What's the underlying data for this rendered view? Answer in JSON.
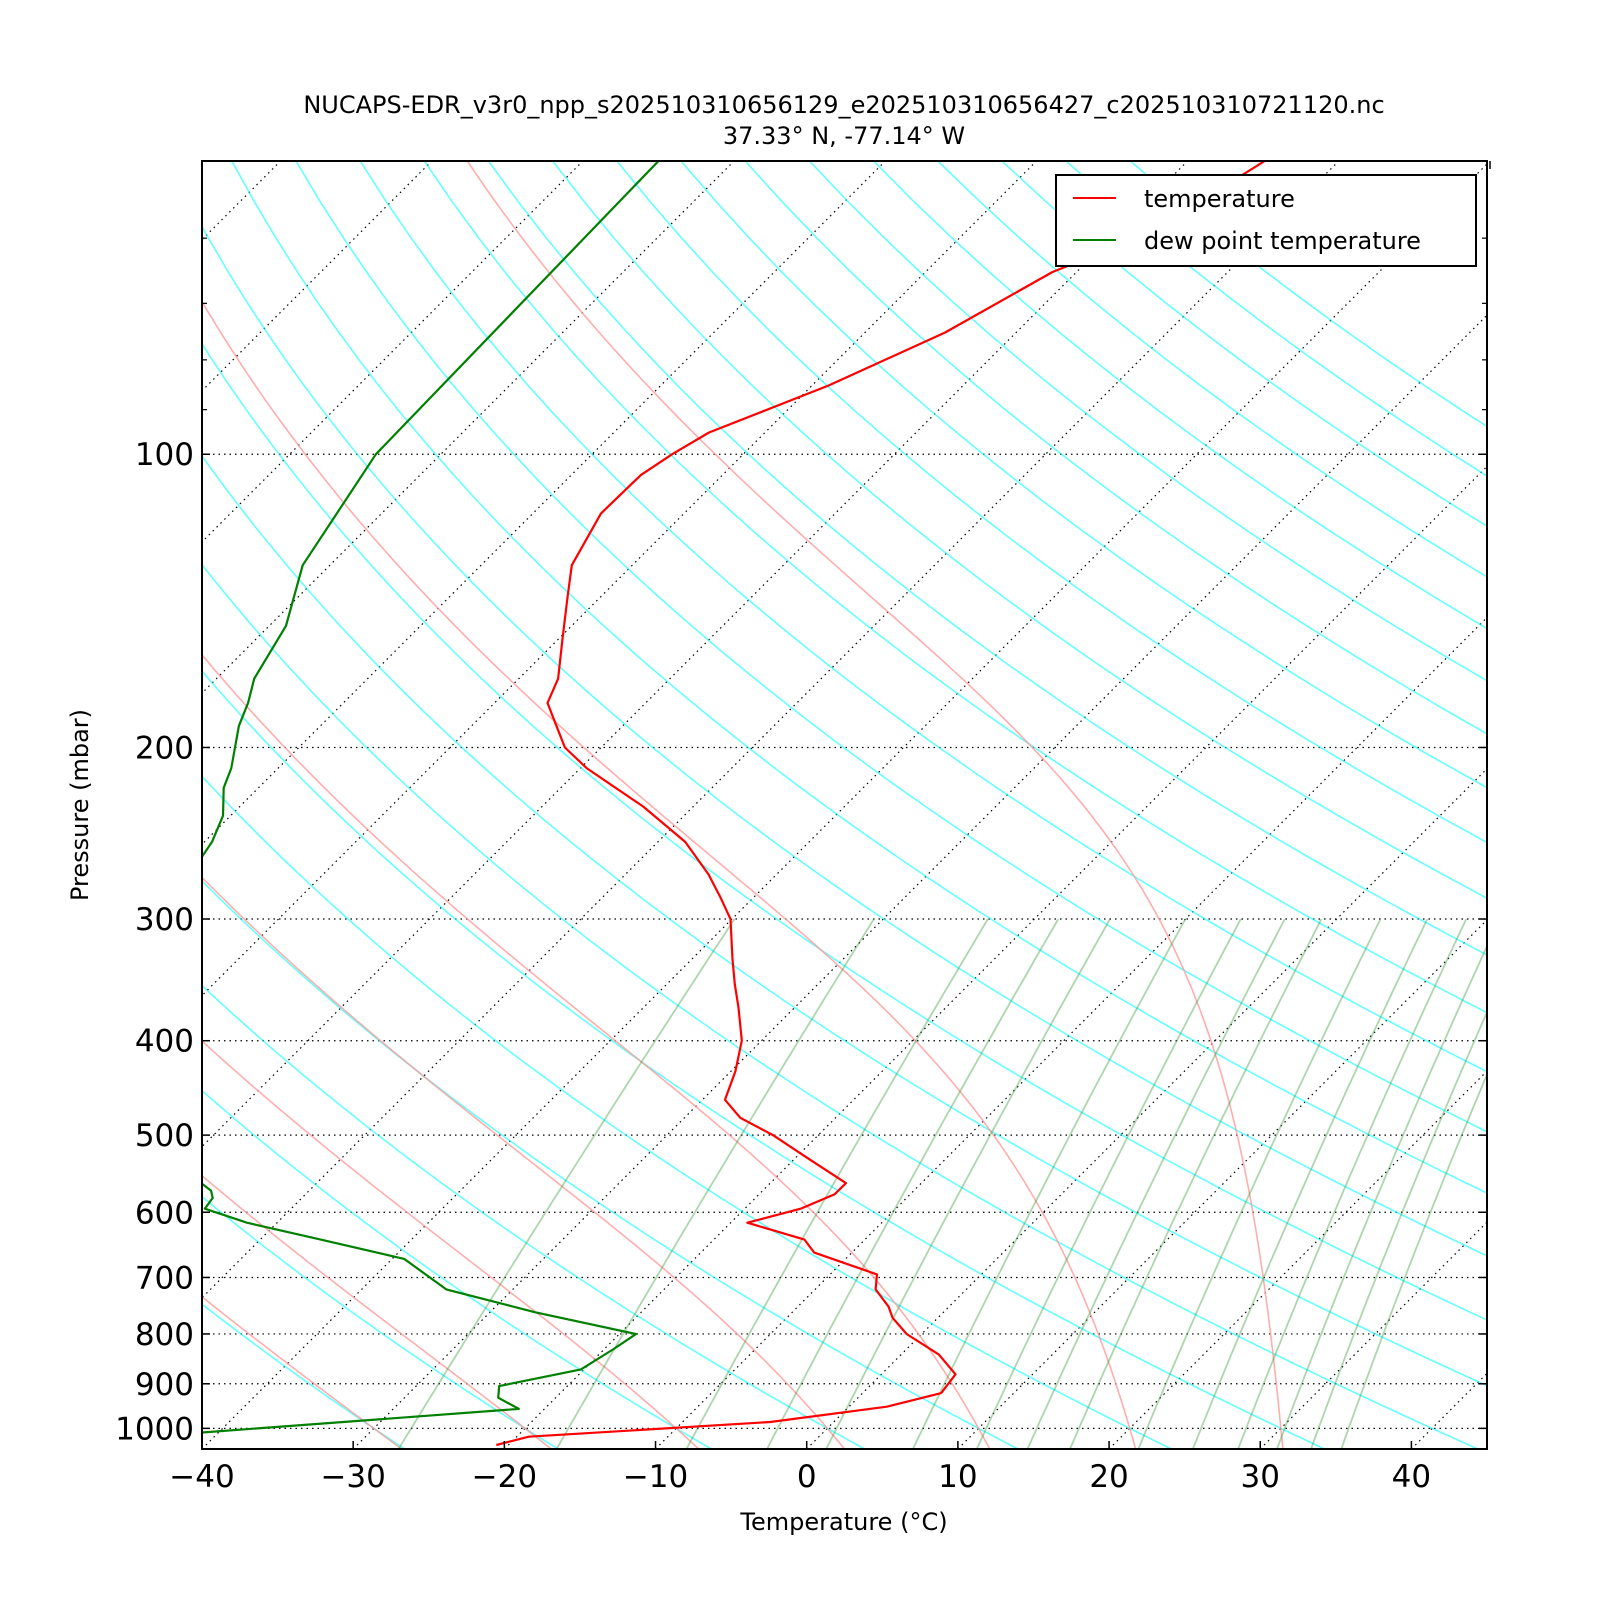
{
  "chart_data": {
    "type": "line",
    "title_line1": "NUCAPS-EDR_v3r0_npp_s202510310656129_e202510310656427_c202510310721120.nc",
    "title_line2": "37.33° N, -77.14° W",
    "xlabel": "Temperature (°C)",
    "ylabel": "Pressure (mbar)",
    "xlim": [
      -40,
      45
    ],
    "ylim": [
      1050,
      50
    ],
    "y_scale": "log",
    "x_ticks": [
      -40,
      -30,
      -20,
      -10,
      0,
      10,
      20,
      30,
      40
    ],
    "x_tick_labels": [
      "−40",
      "−30",
      "−20",
      "−10",
      "0",
      "10",
      "20",
      "30",
      "40"
    ],
    "y_ticks": [
      100,
      200,
      300,
      400,
      500,
      600,
      700,
      800,
      900,
      1000
    ],
    "y_tick_labels": [
      "100",
      "200",
      "300",
      "400",
      "500",
      "600",
      "700",
      "800",
      "900",
      "1000"
    ],
    "grid": true,
    "legend_position": "top-right",
    "series": [
      {
        "name": "temperature",
        "color": "#ff0000",
        "points": [
          [
            50,
            -54.9
          ],
          [
            55,
            -56.5
          ],
          [
            60,
            -58.2
          ],
          [
            65,
            -61.6
          ],
          [
            75,
            -64.7
          ],
          [
            85,
            -68.9
          ],
          [
            95,
            -73.7
          ],
          [
            100,
            -74.7
          ],
          [
            105,
            -75.4
          ],
          [
            115,
            -75.5
          ],
          [
            130,
            -74.0
          ],
          [
            140,
            -72.2
          ],
          [
            155,
            -69.7
          ],
          [
            170,
            -67.4
          ],
          [
            180,
            -66.5
          ],
          [
            190,
            -64.4
          ],
          [
            200,
            -62.4
          ],
          [
            210,
            -59.6
          ],
          [
            230,
            -53.3
          ],
          [
            250,
            -48.2
          ],
          [
            270,
            -44.5
          ],
          [
            285,
            -42.2
          ],
          [
            300,
            -40.1
          ],
          [
            330,
            -37.3
          ],
          [
            350,
            -35.5
          ],
          [
            370,
            -33.7
          ],
          [
            400,
            -31.3
          ],
          [
            430,
            -29.7
          ],
          [
            460,
            -28.5
          ],
          [
            480,
            -26.3
          ],
          [
            500,
            -23.0
          ],
          [
            530,
            -18.9
          ],
          [
            560,
            -15.0
          ],
          [
            575,
            -15.0
          ],
          [
            595,
            -16.3
          ],
          [
            615,
            -18.9
          ],
          [
            640,
            -14.0
          ],
          [
            660,
            -12.5
          ],
          [
            695,
            -6.9
          ],
          [
            720,
            -6.0
          ],
          [
            750,
            -4.0
          ],
          [
            770,
            -3.0
          ],
          [
            800,
            -1.0
          ],
          [
            840,
            2.5
          ],
          [
            880,
            4.9
          ],
          [
            920,
            5.2
          ],
          [
            950,
            2.5
          ],
          [
            985,
            -4.2
          ],
          [
            1020,
            -19.2
          ],
          [
            1040,
            -20.8
          ]
        ]
      },
      {
        "name": "dew point temperature",
        "color": "#008000",
        "points": [
          [
            50,
            -95.0
          ],
          [
            100,
            -94.3
          ],
          [
            130,
            -91.8
          ],
          [
            150,
            -88.9
          ],
          [
            170,
            -87.5
          ],
          [
            180,
            -86.3
          ],
          [
            190,
            -85.4
          ],
          [
            210,
            -83.1
          ],
          [
            220,
            -82.3
          ],
          [
            235,
            -80.5
          ],
          [
            250,
            -79.5
          ],
          [
            270,
            -78.8
          ],
          [
            290,
            -77.6
          ],
          [
            300,
            -76.7
          ],
          [
            330,
            -75.4
          ],
          [
            350,
            -74.3
          ],
          [
            370,
            -73.6
          ],
          [
            390,
            -73.1
          ],
          [
            400,
            -72.6
          ],
          [
            430,
            -70.0
          ],
          [
            460,
            -67.6
          ],
          [
            480,
            -66.5
          ],
          [
            500,
            -65.2
          ],
          [
            520,
            -62.5
          ],
          [
            540,
            -60.0
          ],
          [
            570,
            -56.5
          ],
          [
            580,
            -55.9
          ],
          [
            595,
            -55.7
          ],
          [
            615,
            -52.0
          ],
          [
            640,
            -46.0
          ],
          [
            670,
            -39.2
          ],
          [
            720,
            -34.4
          ],
          [
            760,
            -27.0
          ],
          [
            800,
            -18.9
          ],
          [
            830,
            -19.4
          ],
          [
            870,
            -20.2
          ],
          [
            905,
            -24.5
          ],
          [
            930,
            -23.8
          ],
          [
            955,
            -21.7
          ],
          [
            1020,
            -44.5
          ],
          [
            1040,
            -46.0
          ]
        ]
      }
    ],
    "background_lines": {
      "dry_adiabats_theta_C": [
        -30,
        -20,
        -10,
        0,
        10,
        20,
        30,
        40,
        50,
        60,
        70,
        80,
        90,
        100,
        110,
        120,
        130,
        140,
        150,
        160,
        170,
        180,
        190,
        200,
        210,
        220
      ],
      "moist_adiabats_C": [
        -30,
        -20,
        -10,
        0,
        10,
        20,
        30
      ],
      "mixing_ratios_gkg": [
        0.4,
        1,
        2,
        3,
        4,
        6,
        8,
        10,
        12,
        16,
        20,
        24,
        28,
        32,
        36
      ],
      "dry_adiabat_color": "#00ffff",
      "moist_adiabat_color": "#ff9999",
      "mixing_ratio_color": "#339933",
      "temperature_gridline_color": "#000000"
    }
  },
  "legend": {
    "temperature_label": "temperature",
    "dewpoint_label": "dew point temperature"
  }
}
